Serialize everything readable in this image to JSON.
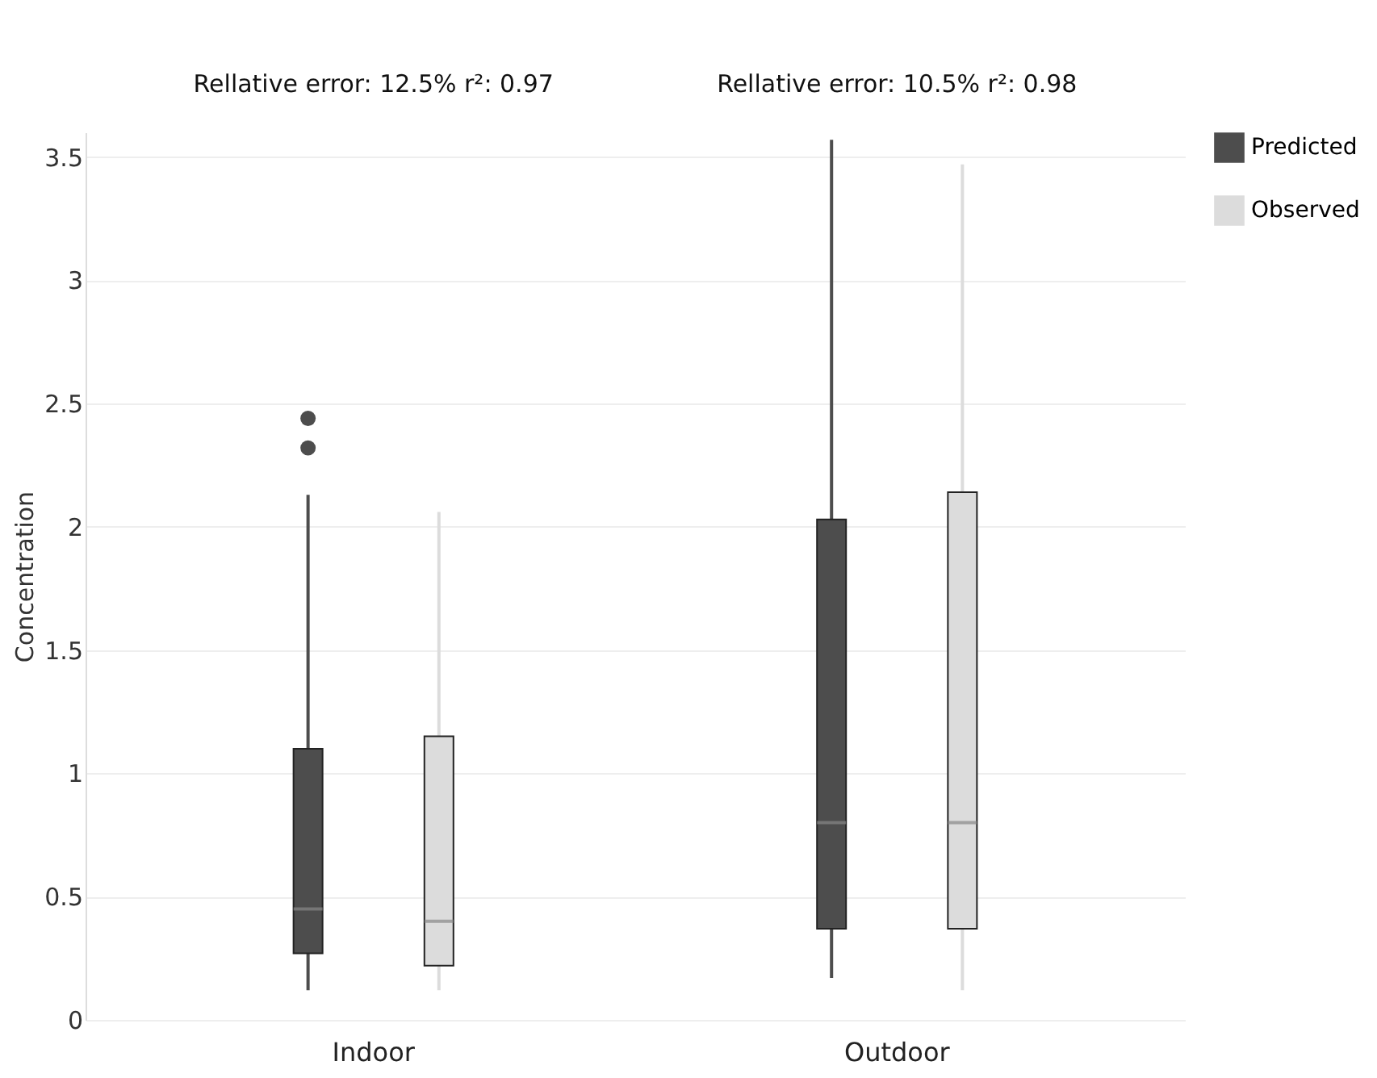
{
  "chart_data": {
    "type": "box",
    "ylabel": "Concentration",
    "categories": [
      "Indoor",
      "Outdoor"
    ],
    "annotations": [
      "Rellative error: 12.5% r²: 0.97",
      "Rellative error: 10.5% r²: 0.98"
    ],
    "series": [
      {
        "name": "Predicted",
        "color": "#4d4d4d",
        "boxes": [
          {
            "low": 0.12,
            "q1": 0.27,
            "median": 0.45,
            "q3": 1.1,
            "high": 2.13,
            "outliers": [
              2.44,
              2.32
            ]
          },
          {
            "low": 0.17,
            "q1": 0.37,
            "median": 0.8,
            "q3": 2.03,
            "high": 3.57
          }
        ]
      },
      {
        "name": "Observed",
        "color": "#dcdcdc",
        "boxes": [
          {
            "low": 0.12,
            "q1": 0.22,
            "median": 0.4,
            "q3": 1.15,
            "high": 2.06
          },
          {
            "low": 0.12,
            "q1": 0.37,
            "median": 0.8,
            "q3": 2.14,
            "high": 3.47
          }
        ]
      }
    ],
    "ylim": [
      0,
      3.6
    ],
    "yticks": [
      0,
      0.5,
      1,
      1.5,
      2,
      2.5,
      3,
      3.5
    ],
    "grid": "y",
    "legend": "top right"
  }
}
